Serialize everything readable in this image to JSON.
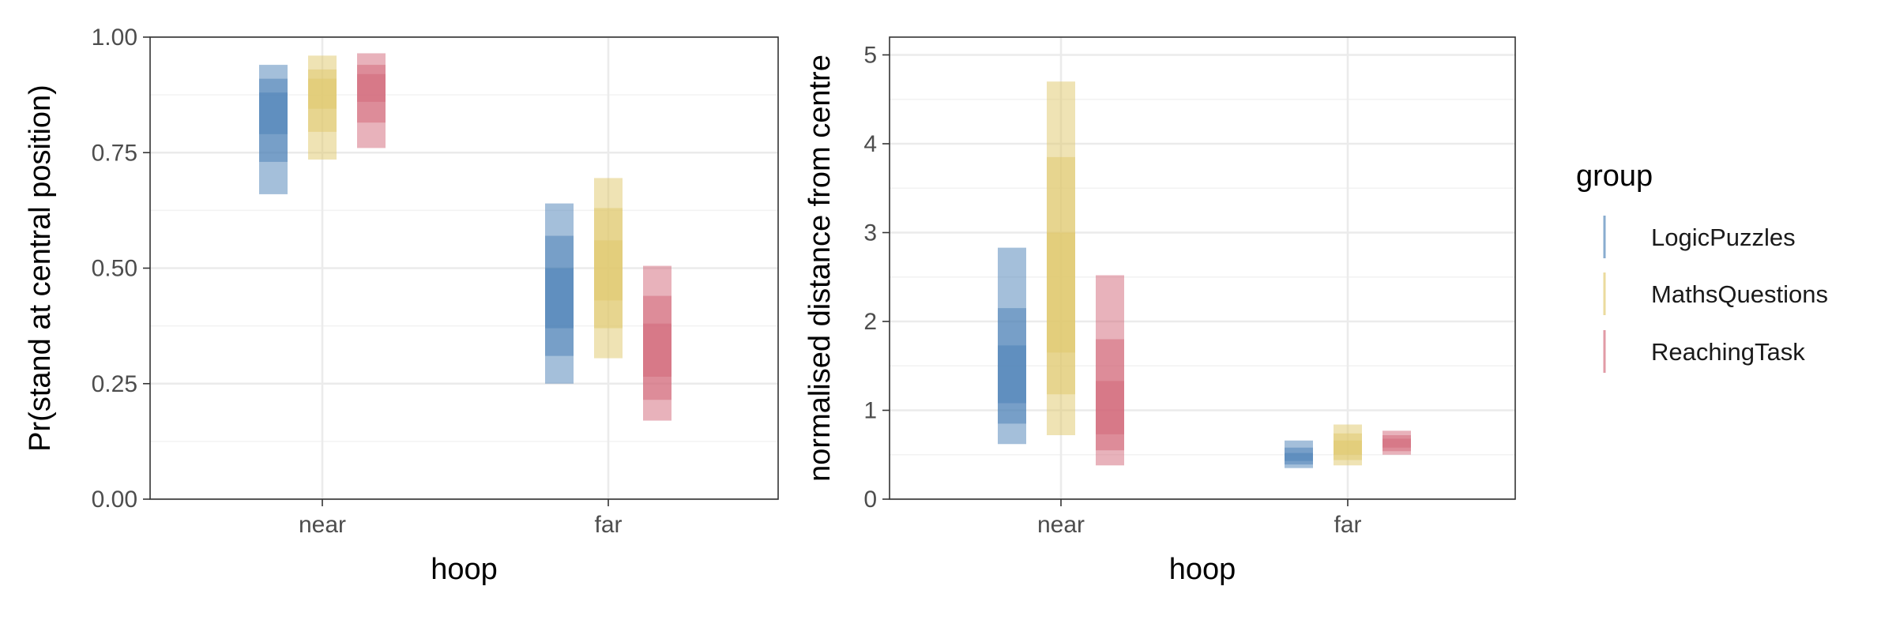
{
  "chart_data": [
    {
      "type": "interval",
      "xlabel": "hoop",
      "ylabel": "Pr(stand at central position)",
      "categories": [
        "near",
        "far"
      ],
      "ylim": [
        0,
        1
      ],
      "yticks": [
        0.0,
        0.25,
        0.5,
        0.75,
        1.0
      ],
      "ytick_labels": [
        "0.00",
        "0.25",
        "0.50",
        "0.75",
        "1.00"
      ],
      "grid": true,
      "series": [
        {
          "name": "LogicPuzzles",
          "intervals": [
            [
              [
                0.66,
                0.94
              ],
              [
                0.73,
                0.91
              ],
              [
                0.79,
                0.88
              ]
            ],
            [
              [
                0.25,
                0.64
              ],
              [
                0.31,
                0.57
              ],
              [
                0.37,
                0.5
              ]
            ]
          ]
        },
        {
          "name": "MathsQuestions",
          "intervals": [
            [
              [
                0.735,
                0.96
              ],
              [
                0.795,
                0.93
              ],
              [
                0.845,
                0.91
              ]
            ],
            [
              [
                0.305,
                0.695
              ],
              [
                0.37,
                0.63
              ],
              [
                0.43,
                0.56
              ]
            ]
          ]
        },
        {
          "name": "ReachingTask",
          "intervals": [
            [
              [
                0.76,
                0.965
              ],
              [
                0.815,
                0.94
              ],
              [
                0.86,
                0.92
              ]
            ],
            [
              [
                0.17,
                0.505
              ],
              [
                0.215,
                0.44
              ],
              [
                0.265,
                0.38
              ]
            ]
          ]
        }
      ]
    },
    {
      "type": "interval",
      "xlabel": "hoop",
      "ylabel": "normalised distance from centre",
      "categories": [
        "near",
        "far"
      ],
      "ylim": [
        0,
        5.2
      ],
      "yticks": [
        0,
        1,
        2,
        3,
        4,
        5
      ],
      "ytick_labels": [
        "0",
        "1",
        "2",
        "3",
        "4",
        "5"
      ],
      "grid": true,
      "series": [
        {
          "name": "LogicPuzzles",
          "intervals": [
            [
              [
                0.62,
                2.83
              ],
              [
                0.85,
                2.15
              ],
              [
                1.08,
                1.73
              ]
            ],
            [
              [
                0.35,
                0.66
              ],
              [
                0.39,
                0.58
              ],
              [
                0.43,
                0.52
              ]
            ]
          ]
        },
        {
          "name": "MathsQuestions",
          "intervals": [
            [
              [
                0.72,
                4.7
              ],
              [
                1.18,
                3.85
              ],
              [
                1.65,
                3.0
              ]
            ],
            [
              [
                0.38,
                0.84
              ],
              [
                0.44,
                0.74
              ],
              [
                0.5,
                0.66
              ]
            ]
          ]
        },
        {
          "name": "ReachingTask",
          "intervals": [
            [
              [
                0.38,
                2.52
              ],
              [
                0.55,
                1.8
              ],
              [
                0.73,
                1.33
              ]
            ],
            [
              [
                0.5,
                0.77
              ],
              [
                0.54,
                0.72
              ],
              [
                0.58,
                0.68
              ]
            ]
          ]
        }
      ]
    }
  ],
  "legend": {
    "title": "group",
    "position": "right",
    "items": [
      "LogicPuzzles",
      "MathsQuestions",
      "ReachingTask"
    ]
  },
  "colors": {
    "LogicPuzzles": "#4a7fb5",
    "MathsQuestions": "#e0c76a",
    "ReachingTask": "#d16577"
  }
}
